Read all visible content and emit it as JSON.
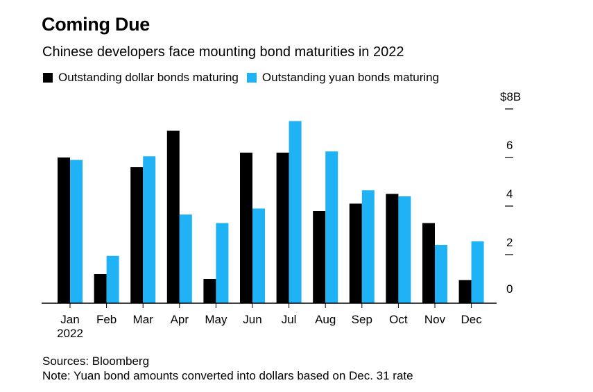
{
  "header": {
    "title": "Coming Due",
    "subtitle": "Chinese developers face mounting bond maturities in 2022"
  },
  "legend": {
    "items": [
      {
        "label": "Outstanding dollar bonds maturing",
        "color": "#000000"
      },
      {
        "label": "Outstanding yuan bonds maturing",
        "color": "#1fb3f5"
      }
    ]
  },
  "footer": {
    "sources": "Sources: Bloomberg",
    "note": "Note: Yuan bond amounts converted into dollars based on Dec. 31 rate"
  },
  "chart_data": {
    "type": "bar",
    "title": "Coming Due",
    "subtitle": "Chinese developers face mounting bond maturities in 2022",
    "categories": [
      "Jan",
      "Feb",
      "Mar",
      "Apr",
      "May",
      "Jun",
      "Jul",
      "Aug",
      "Sep",
      "Oct",
      "Nov",
      "Dec"
    ],
    "x_sublabel": "2022",
    "series": [
      {
        "name": "Outstanding dollar bonds maturing",
        "color": "#000000",
        "values": [
          6.0,
          1.2,
          5.6,
          7.1,
          1.0,
          6.2,
          6.2,
          3.8,
          4.1,
          4.5,
          3.3,
          0.95
        ]
      },
      {
        "name": "Outstanding yuan bonds maturing",
        "color": "#1fb3f5",
        "values": [
          5.9,
          1.95,
          6.05,
          3.65,
          3.3,
          3.9,
          7.5,
          6.25,
          4.65,
          4.4,
          2.4,
          2.55
        ]
      }
    ],
    "yaxis": {
      "ticks": [
        0,
        2,
        4,
        6,
        8
      ],
      "tick_labels": [
        "0",
        "2",
        "4",
        "6",
        "$8B"
      ],
      "position": "right"
    },
    "ylim": [
      0,
      8
    ],
    "xlabel": "",
    "ylabel": "",
    "grid": false
  }
}
